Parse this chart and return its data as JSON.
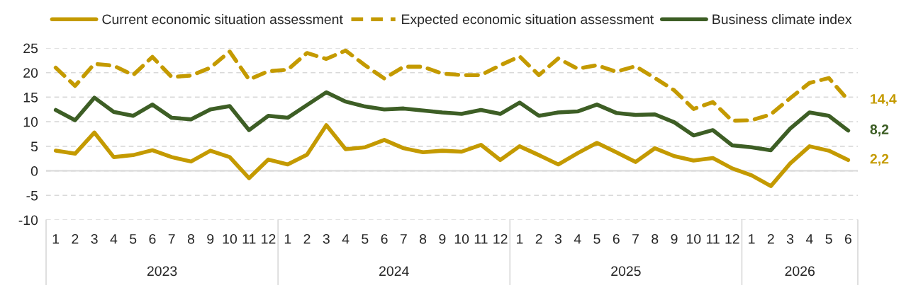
{
  "chart_data": {
    "type": "line",
    "categories": [
      "1",
      "2",
      "3",
      "4",
      "5",
      "6",
      "7",
      "8",
      "9",
      "10",
      "11",
      "12",
      "1",
      "2",
      "3",
      "4",
      "5",
      "6",
      "7",
      "8",
      "9",
      "10",
      "11",
      "12",
      "1",
      "2",
      "3",
      "4",
      "5",
      "6",
      "7",
      "8",
      "9",
      "10",
      "11",
      "12",
      "1",
      "2",
      "3",
      "4",
      "5",
      "6"
    ],
    "annotations": [
      "2023",
      "2024",
      "2025",
      "2026"
    ],
    "series": [
      {
        "name": "Current economic situation assessment",
        "color": "#c49a00",
        "line_style": "solid",
        "values": [
          4.1,
          3.5,
          7.8,
          2.8,
          3.2,
          4.2,
          2.8,
          1.9,
          4.1,
          2.8,
          -1.5,
          2.3,
          1.3,
          3.3,
          9.3,
          4.4,
          4.8,
          6.3,
          4.6,
          3.8,
          4.1,
          3.9,
          5.3,
          2.2,
          5.0,
          3.2,
          1.3,
          3.6,
          5.7,
          3.8,
          1.8,
          4.6,
          3.0,
          2.1,
          2.6,
          0.5,
          -0.9,
          -3.1,
          1.5,
          5.0,
          4.1,
          2.2
        ],
        "value_labels": [
          null,
          null,
          null,
          null,
          null,
          null,
          null,
          null,
          null,
          null,
          null,
          null,
          null,
          null,
          null,
          null,
          null,
          null,
          null,
          null,
          null,
          null,
          null,
          null,
          null,
          null,
          null,
          null,
          null,
          null,
          null,
          null,
          null,
          null,
          null,
          null,
          null,
          null,
          null,
          null,
          null,
          "2,2"
        ]
      },
      {
        "name": "Expected economic situation assessment",
        "color": "#c49a00",
        "line_style": "dashed",
        "values": [
          21.0,
          17.3,
          21.8,
          21.4,
          19.5,
          23.2,
          19.1,
          19.4,
          21.0,
          24.3,
          18.6,
          20.3,
          20.6,
          24.0,
          22.8,
          24.5,
          21.5,
          18.8,
          21.2,
          21.2,
          19.8,
          19.5,
          19.5,
          21.5,
          23.3,
          19.5,
          22.9,
          20.8,
          21.5,
          20.2,
          21.3,
          18.9,
          16.4,
          12.6,
          14.0,
          10.2,
          10.3,
          11.5,
          14.8,
          17.9,
          18.9,
          14.4
        ],
        "value_labels": [
          null,
          null,
          null,
          null,
          null,
          null,
          null,
          null,
          null,
          null,
          null,
          null,
          null,
          null,
          null,
          null,
          null,
          null,
          null,
          null,
          null,
          null,
          null,
          null,
          null,
          null,
          null,
          null,
          null,
          null,
          null,
          null,
          null,
          null,
          null,
          null,
          null,
          null,
          null,
          null,
          null,
          "14,4"
        ]
      },
      {
        "name": "Business climate index",
        "color": "#3d5e25",
        "line_style": "solid",
        "values": [
          12.4,
          10.3,
          14.9,
          12.0,
          11.2,
          13.5,
          10.8,
          10.5,
          12.5,
          13.2,
          8.3,
          11.2,
          10.8,
          13.4,
          16.0,
          14.1,
          13.1,
          12.5,
          12.7,
          12.3,
          11.9,
          11.6,
          12.4,
          11.6,
          13.9,
          11.2,
          11.9,
          12.1,
          13.5,
          11.8,
          11.4,
          11.5,
          9.9,
          7.2,
          8.3,
          5.2,
          4.8,
          4.2,
          8.6,
          11.9,
          11.2,
          8.2
        ],
        "value_labels": [
          null,
          null,
          null,
          null,
          null,
          null,
          null,
          null,
          null,
          null,
          null,
          null,
          null,
          null,
          null,
          null,
          null,
          null,
          null,
          null,
          null,
          null,
          null,
          null,
          null,
          null,
          null,
          null,
          null,
          null,
          null,
          null,
          null,
          null,
          null,
          null,
          null,
          null,
          null,
          null,
          null,
          "8,2"
        ]
      }
    ],
    "ylim": [
      -10,
      25
    ],
    "yticks": [
      -10,
      -5,
      0,
      5,
      10,
      15,
      20,
      25
    ],
    "grid": "y",
    "legend": "top",
    "ref_lines": [
      {
        "axis": "y",
        "value": 0,
        "color": "#d9d9d9",
        "line_style": "solid"
      }
    ]
  }
}
